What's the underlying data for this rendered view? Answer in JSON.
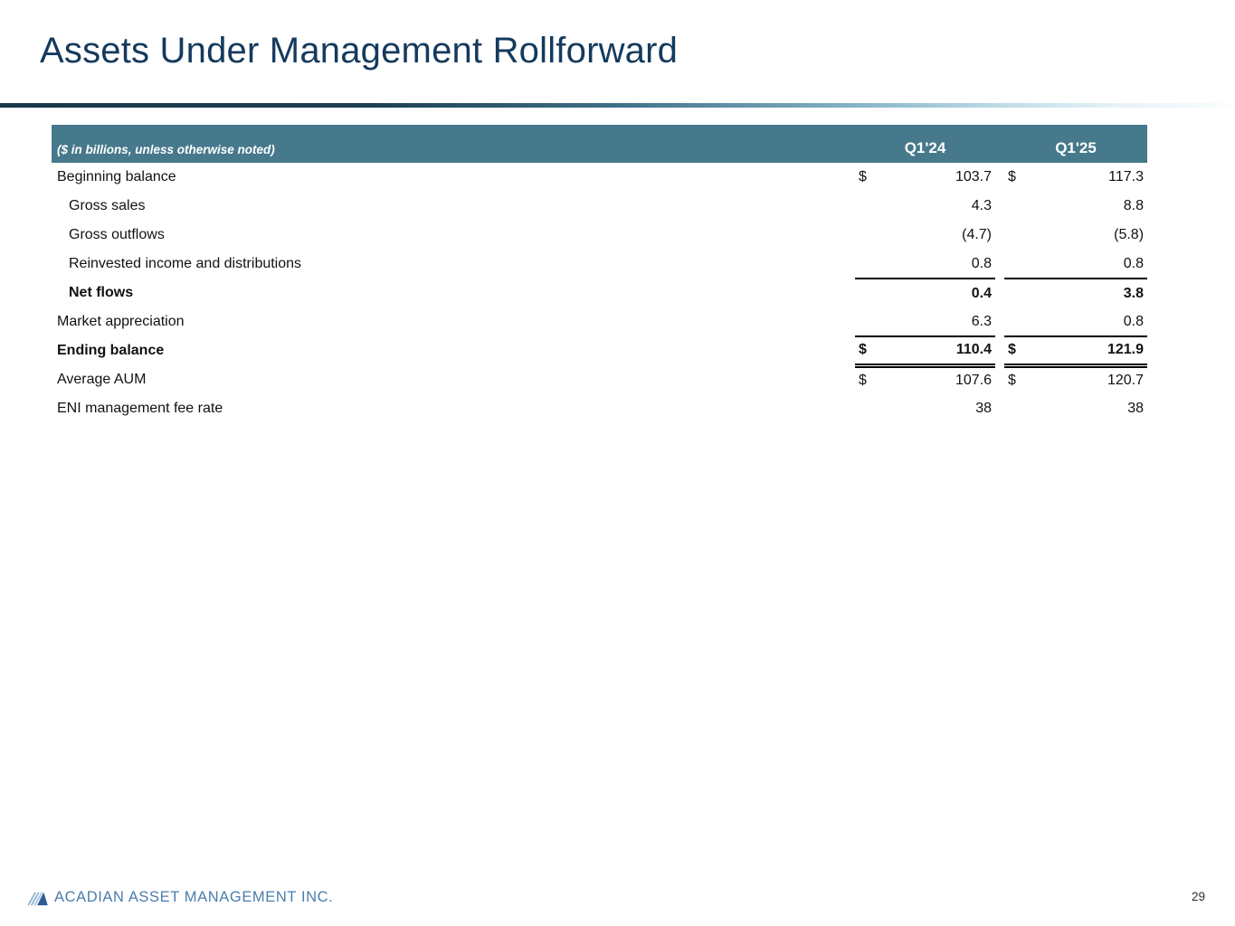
{
  "slide": {
    "title": "Assets Under Management Rollforward",
    "page_number": "29",
    "footer_brand": "ACADIAN ASSET MANAGEMENT INC."
  },
  "colors": {
    "title_navy": "#143a5d",
    "header_bar_teal": "#45798b",
    "footer_brand_blue": "#4b7dab",
    "divider_dark": "#18384b",
    "divider_light": "#e4f2f7",
    "logo_stripe_blue": "#8fb4d4",
    "logo_triangle_blue": "#2d5f95"
  },
  "table": {
    "note": "($ in billions, unless otherwise noted)",
    "columns": [
      "Q1'24",
      "Q1'25"
    ],
    "rows": [
      {
        "label": "Beginning balance",
        "indent": false,
        "bold": false,
        "d1": "$",
        "v1": "103.7",
        "d2": "$",
        "v2": "117.3",
        "rule_top": false,
        "rule_double_bottom": false
      },
      {
        "label": "Gross sales",
        "indent": true,
        "bold": false,
        "d1": "",
        "v1": "4.3",
        "d2": "",
        "v2": "8.8",
        "rule_top": false,
        "rule_double_bottom": false
      },
      {
        "label": "Gross outflows",
        "indent": true,
        "bold": false,
        "d1": "",
        "v1": "(4.7)",
        "d2": "",
        "v2": "(5.8)",
        "rule_top": false,
        "rule_double_bottom": false
      },
      {
        "label": "Reinvested income and distributions",
        "indent": true,
        "bold": false,
        "d1": "",
        "v1": "0.8",
        "d2": "",
        "v2": "0.8",
        "rule_top": false,
        "rule_double_bottom": false
      },
      {
        "label": "Net flows",
        "indent": true,
        "bold": true,
        "d1": "",
        "v1": "0.4",
        "d2": "",
        "v2": "3.8",
        "rule_top": true,
        "rule_double_bottom": false
      },
      {
        "label": "Market appreciation",
        "indent": false,
        "bold": false,
        "d1": "",
        "v1": "6.3",
        "d2": "",
        "v2": "0.8",
        "rule_top": false,
        "rule_double_bottom": false
      },
      {
        "label": "Ending balance",
        "indent": false,
        "bold": true,
        "d1": "$",
        "v1": "110.4",
        "d2": "$",
        "v2": "121.9",
        "rule_top": true,
        "rule_double_bottom": true
      },
      {
        "label": "Average AUM",
        "indent": false,
        "bold": false,
        "d1": "$",
        "v1": "107.6",
        "d2": "$",
        "v2": "120.7",
        "rule_top": false,
        "rule_double_bottom": false
      },
      {
        "label": "ENI management fee rate",
        "indent": false,
        "bold": false,
        "d1": "",
        "v1": "38",
        "d2": "",
        "v2": "38",
        "rule_top": false,
        "rule_double_bottom": false
      }
    ]
  }
}
